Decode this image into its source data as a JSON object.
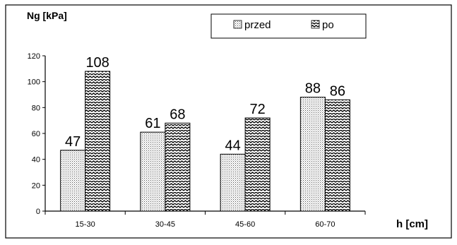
{
  "chart_data": {
    "type": "bar",
    "categories": [
      "15-30",
      "30-45",
      "45-60",
      "60-70"
    ],
    "series": [
      {
        "name": "przed",
        "values": [
          47,
          61,
          44,
          88
        ],
        "pattern": "dots"
      },
      {
        "name": "po",
        "values": [
          108,
          68,
          72,
          86
        ],
        "pattern": "zigzag"
      }
    ],
    "xlabel": "h [cm]",
    "ylabel": "Ng [kPa]",
    "ylim": [
      0,
      120
    ],
    "yticks": [
      0,
      20,
      40,
      60,
      80,
      100,
      120
    ],
    "grid": false,
    "legend_position": "top-right",
    "data_labels": true
  }
}
